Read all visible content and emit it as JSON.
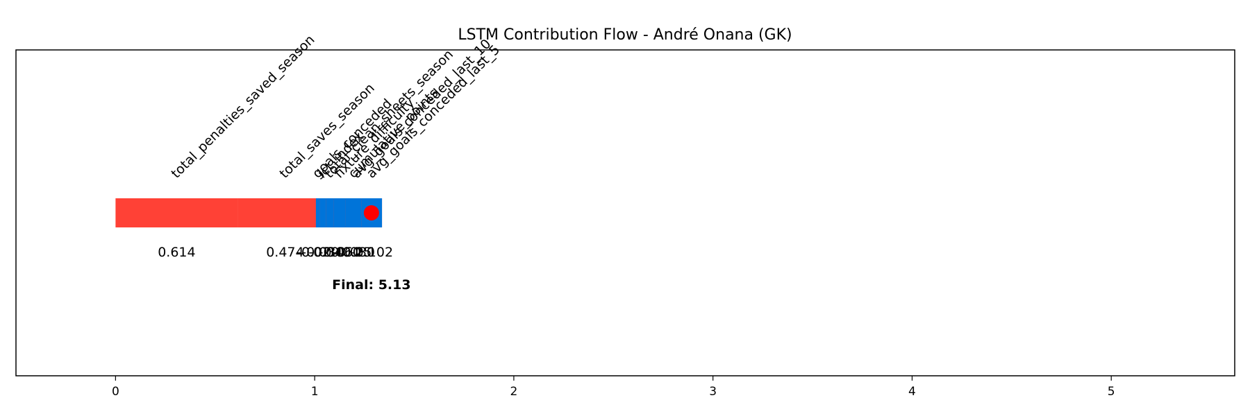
{
  "chart_data": {
    "type": "bar",
    "title": "LSTM Contribution Flow - André Onana (GK)",
    "xlabel": "",
    "ylabel": "",
    "xlim": [
      -0.5,
      5.62
    ],
    "xticks": [
      0,
      1,
      2,
      3,
      4,
      5
    ],
    "grid": false,
    "colors": {
      "positive": "#ff4136",
      "negative": "#0074d9",
      "marker": "#ff0000"
    },
    "segments": [
      {
        "feature": "total_penalties_saved_season",
        "value": 0.614,
        "label": "0.614"
      },
      {
        "feature": "total_saves_season",
        "value": 0.474,
        "label": "0.474"
      },
      {
        "feature": "avg_goals_conceded_last_10",
        "value": 0.25,
        "label": "0.25"
      },
      {
        "feature": "avg_goals_conceded_last_5",
        "value": -0.102,
        "label": "-0.102"
      },
      {
        "feature": "cumulative_points",
        "value": -0.08,
        "label": "-0.080"
      },
      {
        "feature": "fixture_difficulty",
        "value": -0.06,
        "label": "-0.060"
      },
      {
        "feature": "total_clean_sheets_season",
        "value": -0.04,
        "label": "-0.040"
      },
      {
        "feature": "ict_index",
        "value": -0.03,
        "label": "-0.030"
      },
      {
        "feature": "goals_conceded",
        "value": -0.02,
        "label": "-0.020"
      }
    ],
    "marker_x": 1.285,
    "final_label": "Final: 5.13"
  }
}
